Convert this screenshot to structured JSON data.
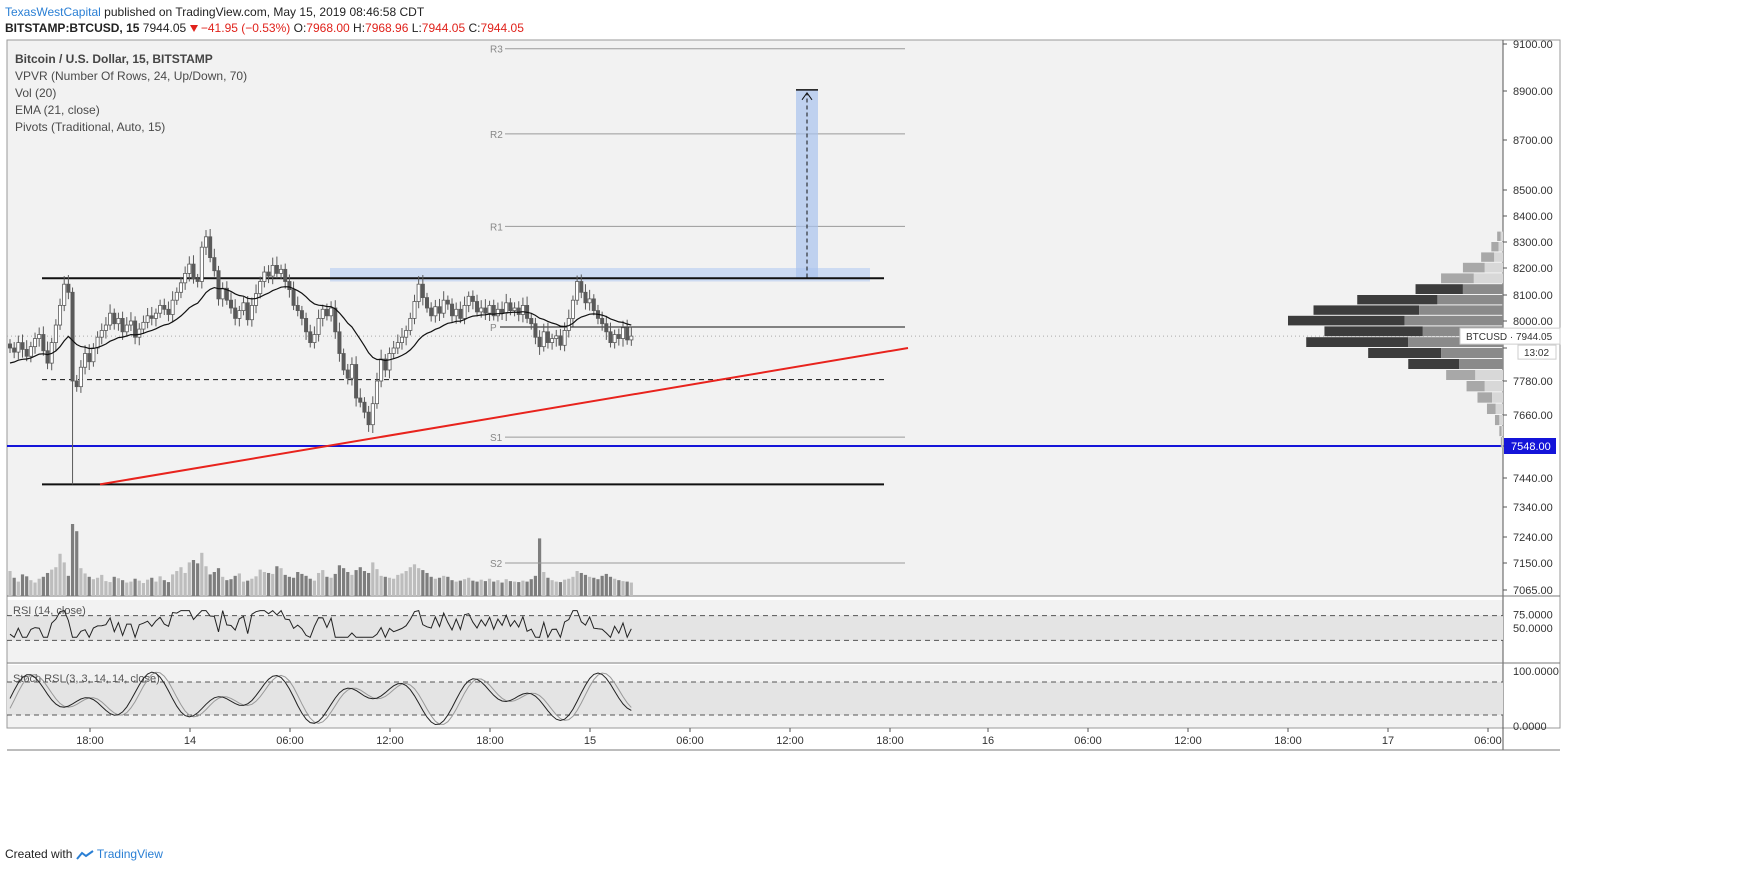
{
  "header": {
    "author": "TexasWestCapital",
    "published_text": "published on TradingView.com, May 15, 2019 08:46:58 CDT",
    "symbol_line": "BITSTAMP:BTCUSD, 15",
    "last": "7944.05",
    "change": "−41.95 (−0.53%)",
    "open_label": "O:",
    "open": "7968.00",
    "high_label": "H:",
    "high": "7968.96",
    "low_label": "L:",
    "low": "7944.05",
    "close_label": "C:",
    "close": "7944.05"
  },
  "legend": [
    "Bitcoin / U.S. Dollar, 15, BITSTAMP",
    "VPVR (Number Of Rows, 24, Up/Down, 70)",
    "Vol (20)",
    "EMA (21, close)",
    "Pivots (Traditional, Auto, 15)"
  ],
  "footer": {
    "created_with": "Created with",
    "brand": "TradingView"
  },
  "colors": {
    "background": "#f2f2f2",
    "grid": "#e6e6e6",
    "candle": "#5a5a5a",
    "ema": "#111111",
    "trendline": "#e8231d",
    "blue_level": "#1414d9",
    "blue_zone": "#c9d8f2",
    "target_box": "#aac3ee",
    "pivot": "#9a9a9a",
    "rsi_band": "#e4e4e4",
    "vp_dark": "#3c3c3c",
    "vp_light": "#bdbdbd"
  },
  "chart_data": {
    "type": "candlestick",
    "symbol": "BTCUSD",
    "x_ticks": [
      "18:00",
      "14",
      "06:00",
      "12:00",
      "18:00",
      "15",
      "06:00",
      "12:00",
      "18:00",
      "16",
      "06:00",
      "12:00",
      "18:00",
      "17",
      "06:00"
    ],
    "y_ticks": [
      9100,
      8900,
      8700,
      8500,
      8400,
      8300,
      8200,
      8100,
      8000,
      7900,
      7780,
      7660,
      7548,
      7440,
      7340,
      7240,
      7150,
      7065
    ],
    "y_tick_labels": [
      "9100.00",
      "8900.00",
      "8700.00",
      "8500.00",
      "8400.00",
      "8300.00",
      "8200.00",
      "8100.00",
      "8000.00",
      "7900.00",
      "7780.00",
      "7660.00",
      "7548.00",
      "7440.00",
      "7340.00",
      "7240.00",
      "7150.00",
      "7065.00"
    ],
    "price_tag": {
      "label": "BTCUSD",
      "value": "7944.05",
      "countdown": "13:02"
    },
    "highlight_level": {
      "value": 7548,
      "label": "7548.00"
    },
    "pivots": [
      {
        "label": "R3",
        "value": 9080
      },
      {
        "label": "R2",
        "value": 8725
      },
      {
        "label": "R1",
        "value": 8360
      },
      {
        "label": "P",
        "value": 7978
      },
      {
        "label": "S1",
        "value": 7580
      },
      {
        "label": "S2",
        "value": 7150
      }
    ],
    "support_levels": [
      8162,
      7418
    ],
    "dashed_level": 7785,
    "trendline": {
      "from": {
        "t": 3.5,
        "price": 7418
      },
      "to": {
        "t": 34.5,
        "price": 7900
      }
    },
    "target": {
      "from": 8165,
      "to": 8905
    },
    "zone": {
      "top": 8200,
      "bottom": 8150
    },
    "candles_close": [
      7900,
      7885,
      7920,
      7895,
      7870,
      7905,
      7935,
      7950,
      7890,
      7845,
      7920,
      7985,
      8060,
      8140,
      8110,
      7780,
      7760,
      7830,
      7880,
      7850,
      7900,
      7940,
      7965,
      7985,
      8030,
      7990,
      8010,
      7960,
      7985,
      8000,
      7940,
      7970,
      7995,
      8020,
      8010,
      8030,
      8060,
      8045,
      8025,
      8080,
      8110,
      8145,
      8180,
      8215,
      8160,
      8150,
      8280,
      8320,
      8240,
      8190,
      8085,
      8125,
      8080,
      8050,
      8010,
      8040,
      8070,
      8005,
      8060,
      8105,
      8150,
      8185,
      8170,
      8210,
      8180,
      8195,
      8150,
      8120,
      8060,
      8040,
      8010,
      7960,
      7920,
      7950,
      8010,
      8045,
      8020,
      8050,
      7960,
      7880,
      7820,
      7790,
      7840,
      7720,
      7705,
      7670,
      7625,
      7700,
      7780,
      7860,
      7820,
      7880,
      7900,
      7920,
      7940,
      7965,
      8010,
      8075,
      8140,
      8090,
      8050,
      8020,
      8055,
      8030,
      8080,
      8065,
      8020,
      8045,
      8010,
      8060,
      8095,
      8075,
      8035,
      8050,
      8030,
      8060,
      8020,
      8045,
      8030,
      8070,
      8040,
      8050,
      8025,
      8060,
      8010,
      7990,
      7940,
      7905,
      7960,
      7920,
      7935,
      7945,
      7910,
      7965,
      8010,
      8080,
      8150,
      8110,
      8070,
      8085,
      8040,
      8010,
      7990,
      7960,
      7920,
      7950,
      7935,
      7975,
      7930,
      7944
    ],
    "volume": [
      52,
      38,
      30,
      45,
      41,
      33,
      28,
      36,
      40,
      48,
      55,
      60,
      88,
      70,
      42,
      150,
      135,
      58,
      47,
      40,
      35,
      38,
      44,
      31,
      29,
      40,
      37,
      33,
      28,
      30,
      36,
      32,
      27,
      34,
      38,
      30,
      41,
      33,
      29,
      45,
      52,
      60,
      48,
      70,
      75,
      68,
      90,
      62,
      45,
      50,
      58,
      40,
      33,
      35,
      42,
      47,
      30,
      32,
      36,
      41,
      55,
      50,
      48,
      46,
      62,
      58,
      44,
      40,
      38,
      50,
      46,
      42,
      36,
      32,
      48,
      54,
      40,
      38,
      46,
      64,
      58,
      50,
      44,
      54,
      60,
      52,
      48,
      70,
      56,
      42,
      40,
      38,
      36,
      44,
      47,
      52,
      60,
      66,
      58,
      54,
      48,
      40,
      36,
      38,
      42,
      40,
      33,
      30,
      32,
      35,
      38,
      32,
      30,
      34,
      31,
      36,
      30,
      33,
      28,
      35,
      31,
      30,
      29,
      32,
      30,
      35,
      42,
      120,
      50,
      38,
      33,
      30,
      29,
      34,
      36,
      40,
      52,
      48,
      44,
      40,
      38,
      35,
      42,
      46,
      40,
      36,
      33,
      31,
      30,
      28
    ],
    "rsi": {
      "label": "RSI (14, close)",
      "upper": 70,
      "lower": 30,
      "tick_labels": [
        "75.0000",
        "50.0000"
      ]
    },
    "stoch_rsi": {
      "label": "Stoch RSI (3, 3, 14, 14, close)",
      "upper": 80,
      "lower": 20,
      "tick_labels": [
        "100.0000",
        "0.0000"
      ]
    },
    "volume_profile": {
      "rows": [
        8320,
        8280,
        8240,
        8200,
        8160,
        8120,
        8080,
        8040,
        8000,
        7960,
        7920,
        7880,
        7840,
        7800,
        7760,
        7720,
        7680,
        7640,
        7600,
        7560
      ],
      "up": [
        5,
        10,
        18,
        30,
        45,
        65,
        110,
        145,
        160,
        135,
        140,
        100,
        70,
        40,
        25,
        20,
        12,
        6,
        3,
        2
      ],
      "down": [
        3,
        6,
        12,
        25,
        40,
        55,
        90,
        115,
        135,
        110,
        130,
        85,
        60,
        38,
        25,
        15,
        10,
        5,
        2,
        1
      ]
    }
  }
}
